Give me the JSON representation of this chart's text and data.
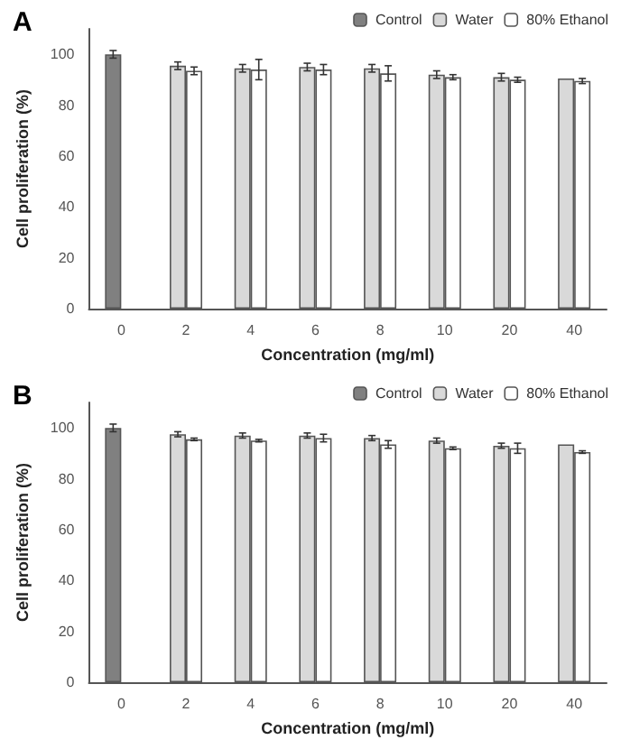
{
  "chart_data": [
    {
      "type": "bar",
      "title": "A",
      "xlabel": "Concentration (mg/ml)",
      "ylabel": "Cell proliferation (%)",
      "categories": [
        "0",
        "2",
        "4",
        "6",
        "8",
        "10",
        "20",
        "40"
      ],
      "ylim": [
        0,
        110
      ],
      "yticks": [
        0,
        20,
        40,
        60,
        80,
        100
      ],
      "legend": "top right",
      "grid": false,
      "series": [
        {
          "name": "Control",
          "color": "#808080",
          "values": [
            100,
            null,
            null,
            null,
            null,
            null,
            null,
            null
          ],
          "errors": [
            1.5,
            null,
            null,
            null,
            null,
            null,
            null,
            null
          ]
        },
        {
          "name": "Water",
          "color": "#d9d9d9",
          "values": [
            null,
            95.5,
            94.5,
            95,
            94.5,
            92,
            91,
            90.5
          ],
          "errors": [
            null,
            1.5,
            1.5,
            1.5,
            1.5,
            1.5,
            1.5,
            null
          ]
        },
        {
          "name": "80% Ethanol",
          "color": "#ffffff",
          "values": [
            null,
            93.5,
            94,
            94,
            92.5,
            91,
            90,
            89.5
          ],
          "errors": [
            null,
            1.5,
            4,
            2,
            3,
            1,
            1,
            1
          ]
        }
      ]
    },
    {
      "type": "bar",
      "title": "B",
      "xlabel": "Concentration (mg/ml)",
      "ylabel": "Cell proliferation (%)",
      "categories": [
        "0",
        "2",
        "4",
        "6",
        "8",
        "10",
        "20",
        "40"
      ],
      "ylim": [
        0,
        110
      ],
      "yticks": [
        0,
        20,
        40,
        60,
        80,
        100
      ],
      "legend": "top right",
      "grid": false,
      "series": [
        {
          "name": "Control",
          "color": "#808080",
          "values": [
            100,
            null,
            null,
            null,
            null,
            null,
            null,
            null
          ],
          "errors": [
            1.5,
            null,
            null,
            null,
            null,
            null,
            null,
            null
          ]
        },
        {
          "name": "Water",
          "color": "#d9d9d9",
          "values": [
            null,
            97.5,
            97,
            97,
            96,
            95,
            93,
            93.5
          ],
          "errors": [
            null,
            1,
            1,
            1,
            1,
            1,
            1,
            null
          ]
        },
        {
          "name": "80% Ethanol",
          "color": "#ffffff",
          "values": [
            null,
            95.5,
            95,
            96,
            93.5,
            92,
            92,
            90.5
          ],
          "errors": [
            null,
            0.5,
            0.5,
            1.5,
            1.5,
            0.5,
            2,
            0.5
          ]
        }
      ]
    }
  ]
}
